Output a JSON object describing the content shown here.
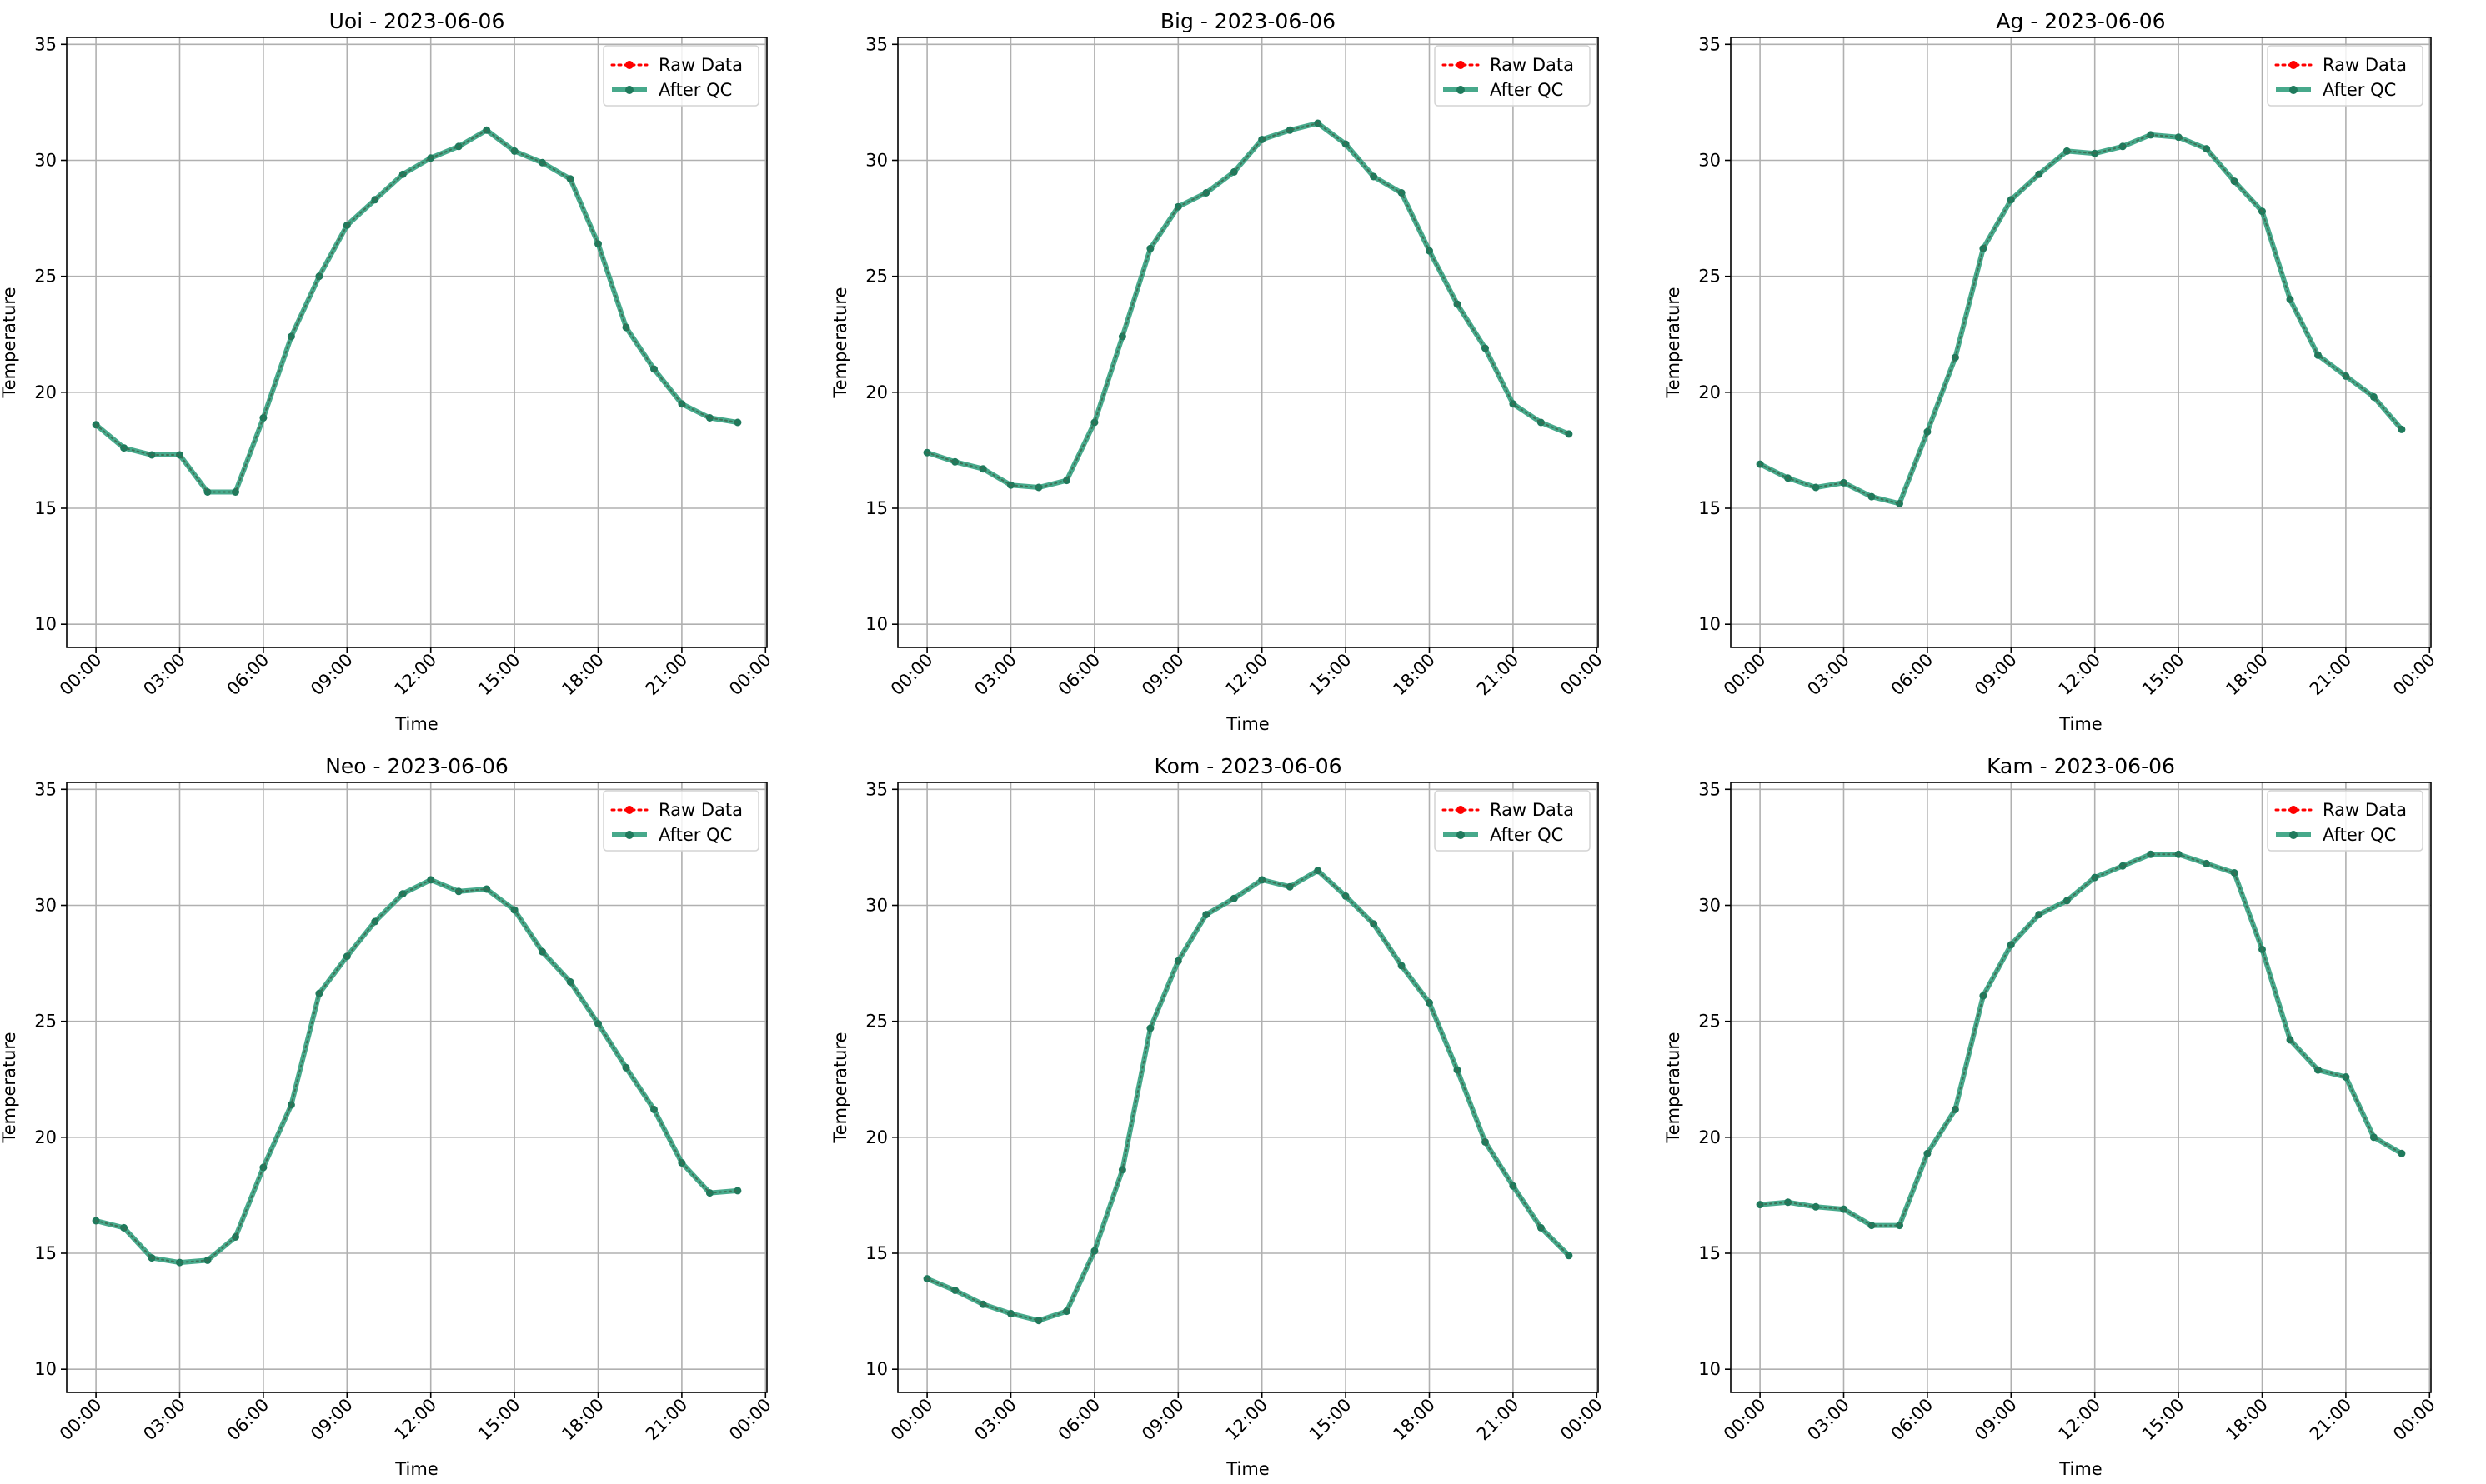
{
  "figure": {
    "colors": {
      "raw": "#ff0000",
      "qc_line": "#2e9e7c",
      "qc_marker": "#1f7a5c",
      "grid": "#b0b0b0",
      "axes": "#000000"
    }
  },
  "chart_data": [
    {
      "type": "line",
      "title": "Uoi - 2023-06-06",
      "xlabel": "Time",
      "ylabel": "Temperature",
      "xlim": [
        -1.05,
        24.05
      ],
      "ylim": [
        9,
        35.3
      ],
      "yticks": [
        10,
        15,
        20,
        25,
        30,
        35
      ],
      "ytick_labels": [
        "10",
        "15",
        "20",
        "25",
        "30",
        "35"
      ],
      "xticks": [
        0,
        3,
        6,
        9,
        12,
        15,
        18,
        21,
        24
      ],
      "xtick_labels": [
        "00:00",
        "03:00",
        "06:00",
        "09:00",
        "12:00",
        "15:00",
        "18:00",
        "21:00",
        "00:00"
      ],
      "grid": true,
      "legend": "upper right",
      "x": [
        "00:00",
        "01:00",
        "02:00",
        "03:00",
        "04:00",
        "05:00",
        "06:00",
        "07:00",
        "08:00",
        "09:00",
        "10:00",
        "11:00",
        "12:00",
        "13:00",
        "14:00",
        "15:00",
        "16:00",
        "17:00",
        "18:00",
        "19:00",
        "20:00",
        "21:00",
        "22:00",
        "23:00"
      ],
      "series": [
        {
          "name": "Raw Data",
          "values": [
            18.6,
            17.6,
            17.3,
            17.3,
            15.7,
            15.7,
            18.9,
            22.4,
            25.0,
            27.2,
            28.3,
            29.4,
            30.1,
            30.6,
            31.3,
            30.4,
            29.9,
            29.2,
            26.4,
            22.8,
            21.0,
            19.5,
            18.9,
            18.7
          ]
        },
        {
          "name": "After QC",
          "values": [
            18.6,
            17.6,
            17.3,
            17.3,
            15.7,
            15.7,
            18.9,
            22.4,
            25.0,
            27.2,
            28.3,
            29.4,
            30.1,
            30.6,
            31.3,
            30.4,
            29.9,
            29.2,
            26.4,
            22.8,
            21.0,
            19.5,
            18.9,
            18.7
          ]
        }
      ]
    },
    {
      "type": "line",
      "title": "Big - 2023-06-06",
      "xlabel": "Time",
      "ylabel": "Temperature",
      "xlim": [
        -1.05,
        24.05
      ],
      "ylim": [
        9,
        35.3
      ],
      "yticks": [
        10,
        15,
        20,
        25,
        30,
        35
      ],
      "ytick_labels": [
        "10",
        "15",
        "20",
        "25",
        "30",
        "35"
      ],
      "xticks": [
        0,
        3,
        6,
        9,
        12,
        15,
        18,
        21,
        24
      ],
      "xtick_labels": [
        "00:00",
        "03:00",
        "06:00",
        "09:00",
        "12:00",
        "15:00",
        "18:00",
        "21:00",
        "00:00"
      ],
      "grid": true,
      "legend": "upper right",
      "x": [
        "00:00",
        "01:00",
        "02:00",
        "03:00",
        "04:00",
        "05:00",
        "06:00",
        "07:00",
        "08:00",
        "09:00",
        "10:00",
        "11:00",
        "12:00",
        "13:00",
        "14:00",
        "15:00",
        "16:00",
        "17:00",
        "18:00",
        "19:00",
        "20:00",
        "21:00",
        "22:00",
        "23:00"
      ],
      "series": [
        {
          "name": "Raw Data",
          "values": [
            17.4,
            17.0,
            16.7,
            16.0,
            15.9,
            16.2,
            18.7,
            22.4,
            26.2,
            28.0,
            28.6,
            29.5,
            30.9,
            31.3,
            31.6,
            30.7,
            29.3,
            28.6,
            26.1,
            23.8,
            21.9,
            19.5,
            18.7,
            18.2
          ]
        },
        {
          "name": "After QC",
          "values": [
            17.4,
            17.0,
            16.7,
            16.0,
            15.9,
            16.2,
            18.7,
            22.4,
            26.2,
            28.0,
            28.6,
            29.5,
            30.9,
            31.3,
            31.6,
            30.7,
            29.3,
            28.6,
            26.1,
            23.8,
            21.9,
            19.5,
            18.7,
            18.2
          ]
        }
      ]
    },
    {
      "type": "line",
      "title": "Ag - 2023-06-06",
      "xlabel": "Time",
      "ylabel": "Temperature",
      "xlim": [
        -1.05,
        24.05
      ],
      "ylim": [
        9,
        35.3
      ],
      "yticks": [
        10,
        15,
        20,
        25,
        30,
        35
      ],
      "ytick_labels": [
        "10",
        "15",
        "20",
        "25",
        "30",
        "35"
      ],
      "xticks": [
        0,
        3,
        6,
        9,
        12,
        15,
        18,
        21,
        24
      ],
      "xtick_labels": [
        "00:00",
        "03:00",
        "06:00",
        "09:00",
        "12:00",
        "15:00",
        "18:00",
        "21:00",
        "00:00"
      ],
      "grid": true,
      "legend": "upper right",
      "x": [
        "00:00",
        "01:00",
        "02:00",
        "03:00",
        "04:00",
        "05:00",
        "06:00",
        "07:00",
        "08:00",
        "09:00",
        "10:00",
        "11:00",
        "12:00",
        "13:00",
        "14:00",
        "15:00",
        "16:00",
        "17:00",
        "18:00",
        "19:00",
        "20:00",
        "21:00",
        "22:00",
        "23:00"
      ],
      "series": [
        {
          "name": "Raw Data",
          "values": [
            16.9,
            16.3,
            15.9,
            16.1,
            15.5,
            15.2,
            18.3,
            21.5,
            26.2,
            28.3,
            29.4,
            30.4,
            30.3,
            30.6,
            31.1,
            31.0,
            30.5,
            29.1,
            27.8,
            24.0,
            21.6,
            20.7,
            19.8,
            18.4
          ]
        },
        {
          "name": "After QC",
          "values": [
            16.9,
            16.3,
            15.9,
            16.1,
            15.5,
            15.2,
            18.3,
            21.5,
            26.2,
            28.3,
            29.4,
            30.4,
            30.3,
            30.6,
            31.1,
            31.0,
            30.5,
            29.1,
            27.8,
            24.0,
            21.6,
            20.7,
            19.8,
            18.4
          ]
        }
      ]
    },
    {
      "type": "line",
      "title": "Neo - 2023-06-06",
      "xlabel": "Time",
      "ylabel": "Temperature",
      "xlim": [
        -1.05,
        24.05
      ],
      "ylim": [
        9,
        35.3
      ],
      "yticks": [
        10,
        15,
        20,
        25,
        30,
        35
      ],
      "ytick_labels": [
        "10",
        "15",
        "20",
        "25",
        "30",
        "35"
      ],
      "xticks": [
        0,
        3,
        6,
        9,
        12,
        15,
        18,
        21,
        24
      ],
      "xtick_labels": [
        "00:00",
        "03:00",
        "06:00",
        "09:00",
        "12:00",
        "15:00",
        "18:00",
        "21:00",
        "00:00"
      ],
      "grid": true,
      "legend": "upper right",
      "x": [
        "00:00",
        "01:00",
        "02:00",
        "03:00",
        "04:00",
        "05:00",
        "06:00",
        "07:00",
        "08:00",
        "09:00",
        "10:00",
        "11:00",
        "12:00",
        "13:00",
        "14:00",
        "15:00",
        "16:00",
        "17:00",
        "18:00",
        "19:00",
        "20:00",
        "21:00",
        "22:00",
        "23:00"
      ],
      "series": [
        {
          "name": "Raw Data",
          "values": [
            16.4,
            16.1,
            14.8,
            14.6,
            14.7,
            15.7,
            18.7,
            21.4,
            26.2,
            27.8,
            29.3,
            30.5,
            31.1,
            30.6,
            30.7,
            29.8,
            28.0,
            26.7,
            24.9,
            23.0,
            21.2,
            18.9,
            17.6,
            17.7
          ]
        },
        {
          "name": "After QC",
          "values": [
            16.4,
            16.1,
            14.8,
            14.6,
            14.7,
            15.7,
            18.7,
            21.4,
            26.2,
            27.8,
            29.3,
            30.5,
            31.1,
            30.6,
            30.7,
            29.8,
            28.0,
            26.7,
            24.9,
            23.0,
            21.2,
            18.9,
            17.6,
            17.7
          ]
        }
      ]
    },
    {
      "type": "line",
      "title": "Kom - 2023-06-06",
      "xlabel": "Time",
      "ylabel": "Temperature",
      "xlim": [
        -1.05,
        24.05
      ],
      "ylim": [
        9,
        35.3
      ],
      "yticks": [
        10,
        15,
        20,
        25,
        30,
        35
      ],
      "ytick_labels": [
        "10",
        "15",
        "20",
        "25",
        "30",
        "35"
      ],
      "xticks": [
        0,
        3,
        6,
        9,
        12,
        15,
        18,
        21,
        24
      ],
      "xtick_labels": [
        "00:00",
        "03:00",
        "06:00",
        "09:00",
        "12:00",
        "15:00",
        "18:00",
        "21:00",
        "00:00"
      ],
      "grid": true,
      "legend": "upper right",
      "x": [
        "00:00",
        "01:00",
        "02:00",
        "03:00",
        "04:00",
        "05:00",
        "06:00",
        "07:00",
        "08:00",
        "09:00",
        "10:00",
        "11:00",
        "12:00",
        "13:00",
        "14:00",
        "15:00",
        "16:00",
        "17:00",
        "18:00",
        "19:00",
        "20:00",
        "21:00",
        "22:00",
        "23:00"
      ],
      "series": [
        {
          "name": "Raw Data",
          "values": [
            13.9,
            13.4,
            12.8,
            12.4,
            12.1,
            12.5,
            15.1,
            18.6,
            24.7,
            27.6,
            29.6,
            30.3,
            31.1,
            30.8,
            31.5,
            30.4,
            29.2,
            27.4,
            25.8,
            22.9,
            19.8,
            17.9,
            16.1,
            14.9
          ]
        },
        {
          "name": "After QC",
          "values": [
            13.9,
            13.4,
            12.8,
            12.4,
            12.1,
            12.5,
            15.1,
            18.6,
            24.7,
            27.6,
            29.6,
            30.3,
            31.1,
            30.8,
            31.5,
            30.4,
            29.2,
            27.4,
            25.8,
            22.9,
            19.8,
            17.9,
            16.1,
            14.9
          ]
        }
      ]
    },
    {
      "type": "line",
      "title": "Kam - 2023-06-06",
      "xlabel": "Time",
      "ylabel": "Temperature",
      "xlim": [
        -1.05,
        24.05
      ],
      "ylim": [
        9,
        35.3
      ],
      "yticks": [
        10,
        15,
        20,
        25,
        30,
        35
      ],
      "ytick_labels": [
        "10",
        "15",
        "20",
        "25",
        "30",
        "35"
      ],
      "xticks": [
        0,
        3,
        6,
        9,
        12,
        15,
        18,
        21,
        24
      ],
      "xtick_labels": [
        "00:00",
        "03:00",
        "06:00",
        "09:00",
        "12:00",
        "15:00",
        "18:00",
        "21:00",
        "00:00"
      ],
      "grid": true,
      "legend": "upper right",
      "x": [
        "00:00",
        "01:00",
        "02:00",
        "03:00",
        "04:00",
        "05:00",
        "06:00",
        "07:00",
        "08:00",
        "09:00",
        "10:00",
        "11:00",
        "12:00",
        "13:00",
        "14:00",
        "15:00",
        "16:00",
        "17:00",
        "18:00",
        "19:00",
        "20:00",
        "21:00",
        "22:00",
        "23:00"
      ],
      "series": [
        {
          "name": "Raw Data",
          "values": [
            17.1,
            17.2,
            17.0,
            16.9,
            16.2,
            16.2,
            19.3,
            21.2,
            26.1,
            28.3,
            29.6,
            30.2,
            31.2,
            31.7,
            32.2,
            32.2,
            31.8,
            31.4,
            28.1,
            24.2,
            22.9,
            22.6,
            20.0,
            19.3
          ]
        },
        {
          "name": "After QC",
          "values": [
            17.1,
            17.2,
            17.0,
            16.9,
            16.2,
            16.2,
            19.3,
            21.2,
            26.1,
            28.3,
            29.6,
            30.2,
            31.2,
            31.7,
            32.2,
            32.2,
            31.8,
            31.4,
            28.1,
            24.2,
            22.9,
            22.6,
            20.0,
            19.3
          ]
        }
      ]
    }
  ]
}
